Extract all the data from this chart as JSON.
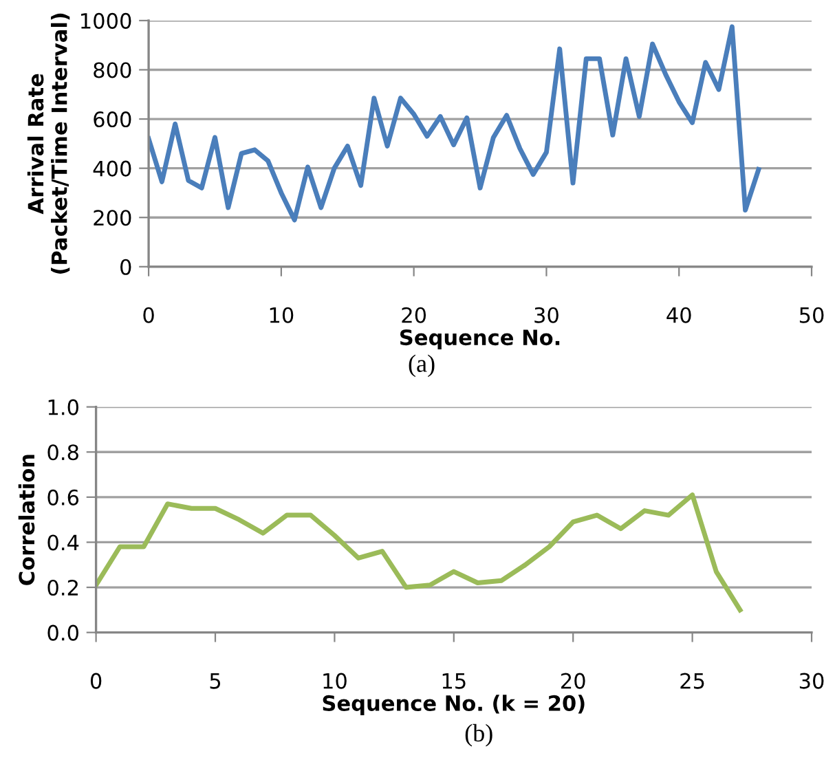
{
  "chart_data": [
    {
      "type": "line",
      "xlabel": "Sequence No.",
      "ylabel": "Arrival Rate\n(Packet/Time Interval)",
      "annotations": [
        "(a)"
      ],
      "x": [
        0,
        1,
        2,
        3,
        4,
        5,
        6,
        7,
        8,
        9,
        10,
        11,
        12,
        13,
        14,
        15,
        16,
        17,
        18,
        19,
        20,
        21,
        22,
        23,
        24,
        25,
        26,
        27,
        28,
        29,
        30,
        31,
        32,
        33,
        34,
        35,
        36,
        37,
        38,
        39,
        40,
        41,
        42,
        43,
        44,
        45,
        46
      ],
      "series": [
        {
          "color": "#4a7ebb",
          "values": [
            520,
            345,
            580,
            350,
            320,
            525,
            240,
            460,
            475,
            430,
            300,
            190,
            405,
            240,
            400,
            490,
            330,
            685,
            490,
            685,
            620,
            530,
            610,
            495,
            605,
            320,
            525,
            615,
            480,
            375,
            465,
            885,
            340,
            845,
            845,
            535,
            845,
            610,
            905,
            780,
            670,
            585,
            830,
            720,
            975,
            230,
            395
          ]
        }
      ],
      "xlim": [
        0,
        50
      ],
      "xticks": [
        0,
        10,
        20,
        30,
        40,
        50
      ],
      "ylim": [
        0,
        1000
      ],
      "yticks": [
        0,
        200,
        400,
        600,
        800,
        1000
      ],
      "grid": "y",
      "marker": "none",
      "line_style": "solid"
    },
    {
      "type": "line",
      "xlabel": "Sequence No. (k = 20)",
      "ylabel": "Correlation",
      "annotations": [
        "(b)"
      ],
      "x": [
        0,
        1,
        2,
        3,
        4,
        5,
        6,
        7,
        8,
        9,
        10,
        11,
        12,
        13,
        14,
        15,
        16,
        17,
        18,
        19,
        20,
        21,
        22,
        23,
        24,
        25,
        26,
        27
      ],
      "series": [
        {
          "color": "#9bbb59",
          "values": [
            0.21,
            0.38,
            0.38,
            0.57,
            0.55,
            0.55,
            0.5,
            0.44,
            0.52,
            0.52,
            0.43,
            0.33,
            0.36,
            0.2,
            0.21,
            0.27,
            0.22,
            0.23,
            0.3,
            0.38,
            0.49,
            0.52,
            0.46,
            0.54,
            0.52,
            0.61,
            0.27,
            0.1
          ]
        }
      ],
      "xlim": [
        0,
        30
      ],
      "xticks": [
        0,
        5,
        10,
        15,
        20,
        25,
        30
      ],
      "ylim": [
        0,
        1.0
      ],
      "yticks": [
        {
          "value": 0,
          "label": "0.0"
        },
        {
          "value": 0.2,
          "label": "0.2"
        },
        {
          "value": 0.4,
          "label": "0.4"
        },
        {
          "value": 0.6,
          "label": "0.6"
        },
        {
          "value": 0.8,
          "label": "0.8"
        },
        {
          "value": 1.0,
          "label": "1.0"
        }
      ],
      "grid": "y",
      "marker": "none",
      "line_style": "solid"
    }
  ]
}
